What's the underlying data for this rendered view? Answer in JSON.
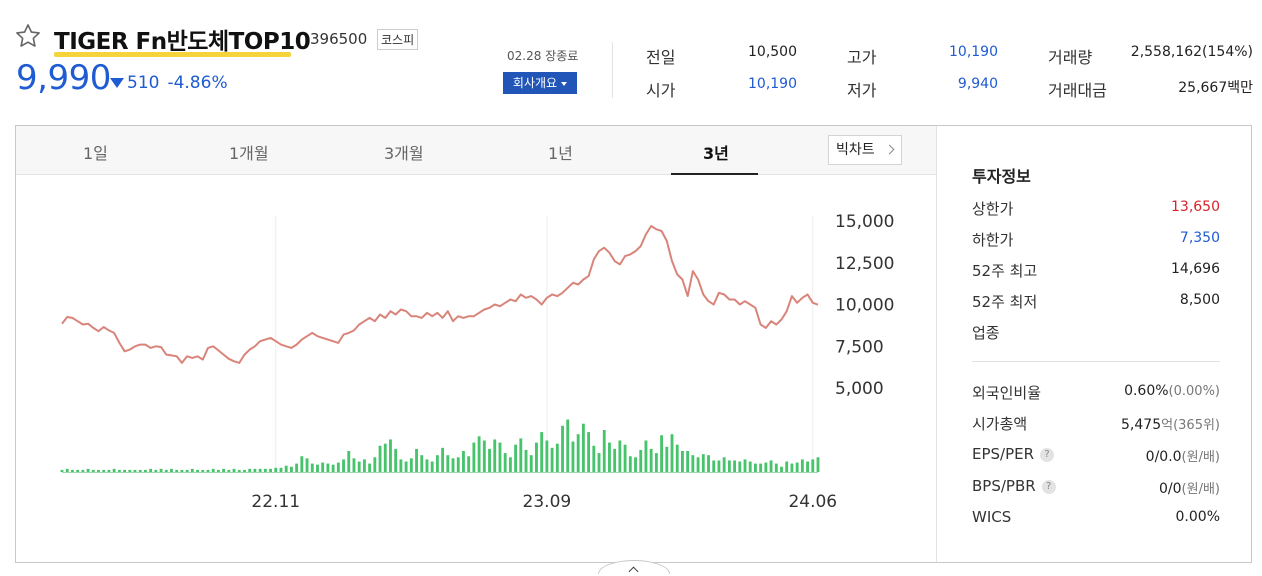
{
  "header": {
    "title": "TIGER Fn반도체TOP10",
    "code": "396500",
    "market": "코스피",
    "price": "9,990",
    "change": "510",
    "change_rate": "-4.86%",
    "date": "02.28 장종료",
    "company_button": "회사개요"
  },
  "quote": {
    "prev_label": "전일",
    "prev": "10,500",
    "open_label": "시가",
    "open": "10,190",
    "high_label": "고가",
    "high": "10,190",
    "low_label": "저가",
    "low": "9,940",
    "volume_label": "거래량",
    "volume": "2,558,162(154%)",
    "amount_label": "거래대금",
    "amount": "25,667백만"
  },
  "tabs": [
    {
      "label": "1일"
    },
    {
      "label": "1개월"
    },
    {
      "label": "3개월"
    },
    {
      "label": "1년"
    },
    {
      "label": "3년",
      "active": true
    }
  ],
  "bigchart_label": "빅차트",
  "colors": {
    "price_line": "#d9847a",
    "volume_bar": "#46c36b",
    "down": "#1f5bd1",
    "up": "#d8222a"
  },
  "chart_data": {
    "type": "line",
    "title": "",
    "xlabel": "",
    "ylabel": "",
    "ylim": [
      5000,
      15000
    ],
    "yticks": [
      "15,000",
      "12,500",
      "10,000",
      "7,500",
      "5,000"
    ],
    "xticks": [
      "22.11",
      "23.09",
      "24.06"
    ],
    "series": [
      {
        "values": [
          8850,
          9250,
          9200,
          9000,
          8800,
          8850,
          8600,
          8400,
          8650,
          8450,
          8300,
          7700,
          7200,
          7300,
          7500,
          7600,
          7600,
          7400,
          7500,
          7450,
          7000,
          6950,
          6900,
          6500,
          6900,
          6800,
          6900,
          6700,
          7400,
          7500,
          7250,
          7000,
          6750,
          6600,
          6500,
          7000,
          7300,
          7500,
          7800,
          7900,
          8000,
          7800,
          7600,
          7500,
          7400,
          7600,
          7900,
          8100,
          8300,
          8100,
          8000,
          7900,
          7800,
          7700,
          8200,
          8300,
          8450,
          8800,
          9000,
          9200,
          9000,
          9400,
          9200,
          9600,
          9400,
          9700,
          9600,
          9300,
          9300,
          9200,
          9500,
          9300,
          9500,
          9200,
          9600,
          9000,
          9300,
          9200,
          9300,
          9300,
          9500,
          9700,
          9800,
          10000,
          9900,
          10100,
          10300,
          10200,
          10600,
          10400,
          10500,
          10300,
          10000,
          10400,
          10600,
          10500,
          10700,
          11000,
          11300,
          11200,
          11500,
          11700,
          12700,
          13200,
          13400,
          13100,
          12600,
          12400,
          12900,
          13000,
          13200,
          13500,
          14200,
          14700,
          14500,
          14400,
          13800,
          12600,
          11800,
          11500,
          10500,
          12000,
          11500,
          10600,
          10200,
          10000,
          10700,
          10600,
          10300,
          10300,
          10000,
          10200,
          10000,
          9800,
          8800,
          8600,
          9000,
          8800,
          9100,
          9600,
          10500,
          10100,
          10400,
          10600,
          10100,
          9990
        ],
        "volume": [
          2,
          3,
          2,
          2,
          2,
          3,
          2,
          2,
          2,
          2,
          3,
          2,
          2,
          2,
          2,
          2,
          2,
          3,
          2,
          3,
          2,
          3,
          2,
          2,
          2,
          3,
          2,
          2,
          2,
          3,
          2,
          3,
          2,
          3,
          2,
          2,
          3,
          3,
          3,
          3,
          3,
          4,
          4,
          6,
          5,
          8,
          15,
          13,
          8,
          7,
          9,
          8,
          7,
          9,
          12,
          20,
          13,
          10,
          12,
          8,
          14,
          25,
          27,
          31,
          22,
          12,
          10,
          13,
          22,
          16,
          12,
          10,
          16,
          23,
          16,
          13,
          14,
          20,
          15,
          28,
          34,
          30,
          22,
          31,
          28,
          18,
          14,
          26,
          32,
          21,
          16,
          28,
          38,
          30,
          23,
          27,
          44,
          50,
          29,
          36,
          46,
          38,
          25,
          18,
          40,
          28,
          22,
          30,
          26,
          15,
          14,
          21,
          30,
          22,
          18,
          35,
          24,
          36,
          26,
          20,
          20,
          16,
          14,
          17,
          16,
          11,
          11,
          14,
          11,
          11,
          10,
          12,
          10,
          8,
          8,
          9,
          11,
          8,
          5,
          10,
          8,
          9,
          12,
          10,
          12,
          14
        ]
      }
    ],
    "legend": "none",
    "grid": true
  },
  "info": {
    "title": "투자정보",
    "upper_label": "상한가",
    "upper": "13,650",
    "lower_label": "하한가",
    "lower": "7,350",
    "high52_label": "52주 최고",
    "high52": "14,696",
    "low52_label": "52주 최저",
    "low52": "8,500",
    "sector_label": "업종",
    "foreign_label": "외국인비율",
    "foreign": "0.60%",
    "foreign_sub": "(0.00%)",
    "mcap_label": "시가총액",
    "mcap": "5,475",
    "mcap_unit": "억",
    "mcap_rank": "(365위)",
    "eps_label": "EPS/PER",
    "eps": "0/0.0",
    "eps_unit": "(원/배)",
    "bps_label": "BPS/PBR",
    "bps": "0/0",
    "bps_unit": "(원/배)",
    "wics_label": "WICS",
    "wics": "0.00%",
    "help_glyph": "?"
  }
}
